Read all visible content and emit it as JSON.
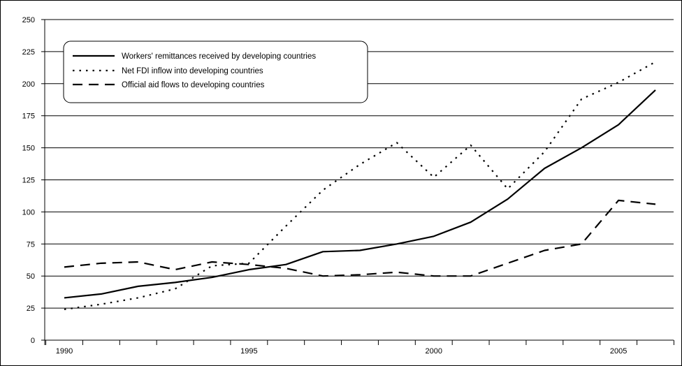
{
  "chart_data": {
    "type": "line",
    "title": "",
    "xlabel": "",
    "ylabel": "",
    "x": [
      1990,
      1991,
      1992,
      1993,
      1994,
      1995,
      1996,
      1997,
      1998,
      1999,
      2000,
      2001,
      2002,
      2003,
      2004,
      2005,
      2006
    ],
    "xlim": [
      1990,
      2006
    ],
    "ylim": [
      0,
      250
    ],
    "y_ticks": [
      "0",
      "25",
      "50",
      "75",
      "100",
      "125",
      "150",
      "175",
      "200",
      "225",
      "250"
    ],
    "x_tick_labels": [
      "1990",
      "1995",
      "2000",
      "2005"
    ],
    "grid": "horizontal",
    "legend_position": "top-left",
    "series": [
      {
        "name": "Workers' remittances received by developing countries",
        "style": "solid",
        "values": [
          33,
          36,
          42,
          45,
          49,
          55,
          59,
          69,
          70,
          75,
          81,
          92,
          110,
          134,
          150,
          168,
          195
        ]
      },
      {
        "name": "Net FDI inflow into developing countries",
        "style": "dotted",
        "values": [
          24,
          28,
          33,
          40,
          58,
          60,
          89,
          117,
          137,
          154,
          127,
          152,
          118,
          147,
          188,
          201,
          217
        ]
      },
      {
        "name": "Official aid flows to developing countries",
        "style": "dashed",
        "values": [
          57,
          60,
          61,
          55,
          61,
          59,
          56,
          50,
          51,
          53,
          50,
          50,
          60,
          70,
          75,
          109,
          106
        ]
      }
    ]
  }
}
